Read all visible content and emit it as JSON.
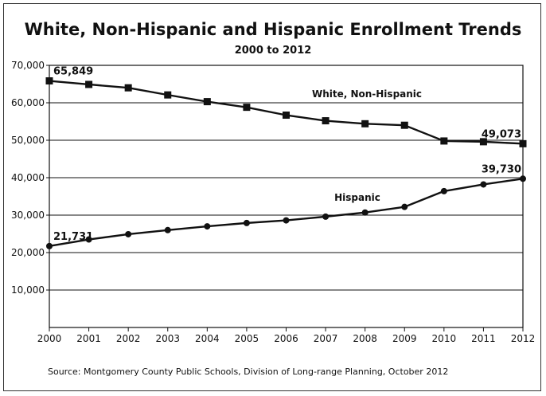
{
  "chart_data": {
    "type": "line",
    "title": "White, Non-Hispanic and Hispanic Enrollment Trends",
    "subtitle": "2000 to 2012",
    "x": [
      2000,
      2001,
      2002,
      2003,
      2004,
      2005,
      2006,
      2007,
      2008,
      2009,
      2010,
      2011,
      2012
    ],
    "ylim": [
      0,
      70000
    ],
    "yticks": [
      "10,000",
      "20,000",
      "30,000",
      "40,000",
      "50,000",
      "60,000",
      "70,000"
    ],
    "grid": true,
    "series": [
      {
        "name": "White, Non-Hispanic",
        "marker": "square",
        "values": [
          65849,
          64900,
          64000,
          62100,
          60300,
          58800,
          56700,
          55200,
          54400,
          54000,
          49800,
          49600,
          49073
        ]
      },
      {
        "name": "Hispanic",
        "marker": "circle",
        "values": [
          21731,
          23500,
          24900,
          26000,
          27000,
          27900,
          28600,
          29600,
          30700,
          32200,
          36400,
          38200,
          39730
        ]
      }
    ],
    "data_labels": [
      {
        "series": 0,
        "index": 0,
        "text": "65,849"
      },
      {
        "series": 0,
        "index": 12,
        "text": "49,073"
      },
      {
        "series": 1,
        "index": 0,
        "text": "21,731"
      },
      {
        "series": 1,
        "index": 12,
        "text": "39,730"
      }
    ],
    "source": "Source: Montgomery County Public Schools, Division of Long-range Planning, October 2012"
  }
}
